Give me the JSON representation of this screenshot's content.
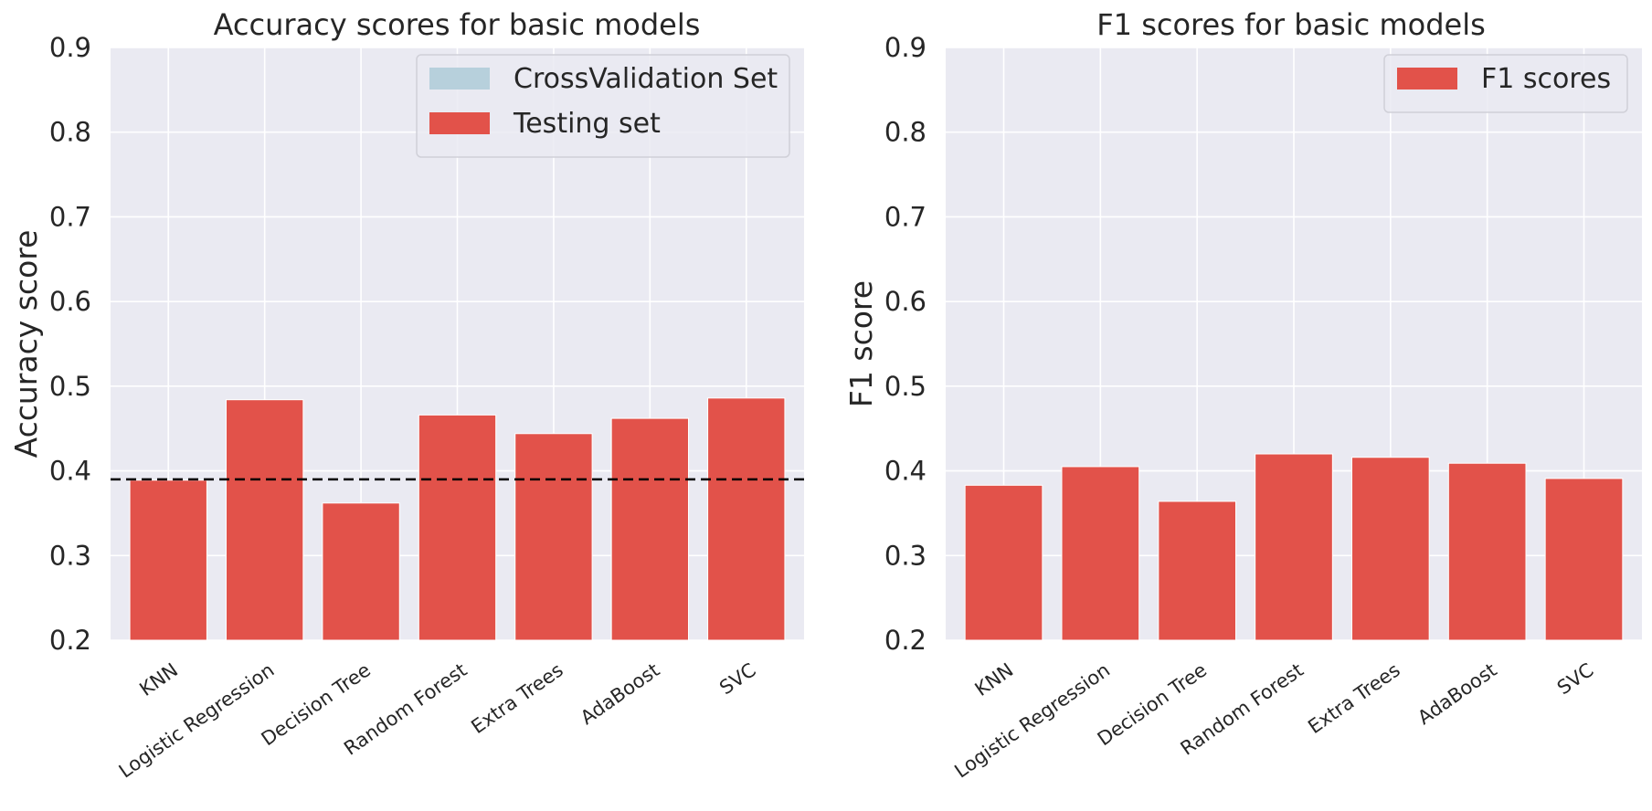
{
  "chart_data": [
    {
      "type": "bar",
      "title": "Accuracy scores for basic models",
      "xlabel": "",
      "ylabel": "Accuracy score",
      "ylim": [
        0.2,
        0.9
      ],
      "yticks": [
        "0.2",
        "0.3",
        "0.4",
        "0.5",
        "0.6",
        "0.7",
        "0.8",
        "0.9"
      ],
      "grid": true,
      "legend_position": "top-right",
      "categories": [
        "KNN",
        "Logistic Regression",
        "Decision Tree",
        "Random Forest",
        "Extra Trees",
        "AdaBoost",
        "SVC"
      ],
      "series": [
        {
          "name": "CrossValidation Set",
          "color": "#b7d0dc",
          "values": [
            0.388,
            0.483,
            0.361,
            0.465,
            0.443,
            0.461,
            0.485
          ]
        },
        {
          "name": "Testing set",
          "color": "#e2524a",
          "values": [
            0.389,
            0.484,
            0.362,
            0.466,
            0.444,
            0.462,
            0.486
          ]
        }
      ],
      "reference_line": {
        "y": 0.39,
        "style": "dashed",
        "color": "#000000"
      }
    },
    {
      "type": "bar",
      "title": "F1 scores for basic models",
      "xlabel": "",
      "ylabel": "F1 score",
      "ylim": [
        0.2,
        0.9
      ],
      "yticks": [
        "0.2",
        "0.3",
        "0.4",
        "0.5",
        "0.6",
        "0.7",
        "0.8",
        "0.9"
      ],
      "grid": true,
      "legend_position": "top-right",
      "categories": [
        "KNN",
        "Logistic Regression",
        "Decision Tree",
        "Random Forest",
        "Extra Trees",
        "AdaBoost",
        "SVC"
      ],
      "series": [
        {
          "name": "F1 scores",
          "color": "#e2524a",
          "values": [
            0.383,
            0.405,
            0.364,
            0.42,
            0.416,
            0.409,
            0.391
          ]
        }
      ]
    }
  ]
}
